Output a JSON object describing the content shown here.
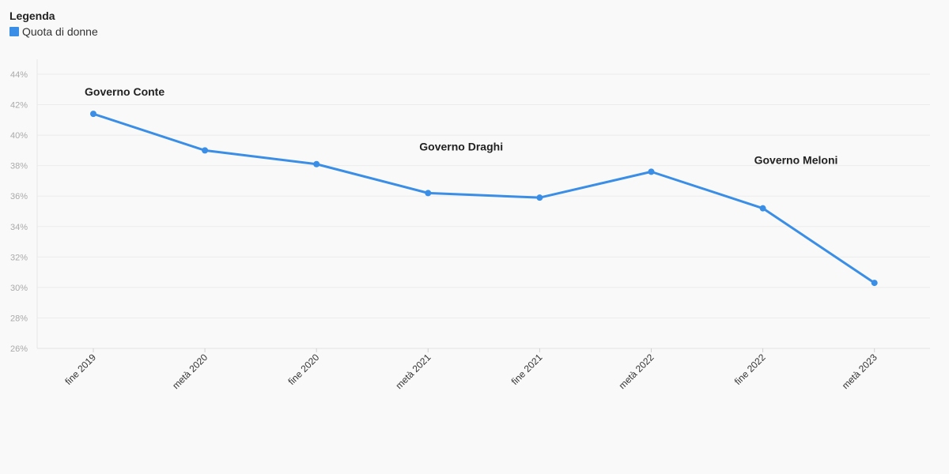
{
  "legend": {
    "title": "Legenda",
    "items": [
      {
        "label": "Quota di donne",
        "color": "#3a8ee6"
      }
    ]
  },
  "chart_data": {
    "type": "line",
    "categories": [
      "fine 2019",
      "metà 2020",
      "fine 2020",
      "metà 2021",
      "fine 2021",
      "metà 2022",
      "fine 2022",
      "metà 2023"
    ],
    "series": [
      {
        "name": "Quota di donne",
        "color": "#3a8ee6",
        "values": [
          41.4,
          39.0,
          38.1,
          36.2,
          35.9,
          37.6,
          35.2,
          30.3
        ]
      }
    ],
    "ylim": [
      26,
      44
    ],
    "yticks": [
      26,
      28,
      30,
      32,
      34,
      36,
      38,
      40,
      42,
      44
    ],
    "ytick_suffix": "%",
    "grid": true,
    "legend_position": "top-left",
    "annotations": [
      {
        "text": "Governo Conte",
        "x": "fine 2019",
        "y": 42.6
      },
      {
        "text": "Governo Draghi",
        "x": "metà 2021",
        "y": 39.0
      },
      {
        "text": "Governo Meloni",
        "x": "fine 2022",
        "y": 38.1
      }
    ]
  }
}
